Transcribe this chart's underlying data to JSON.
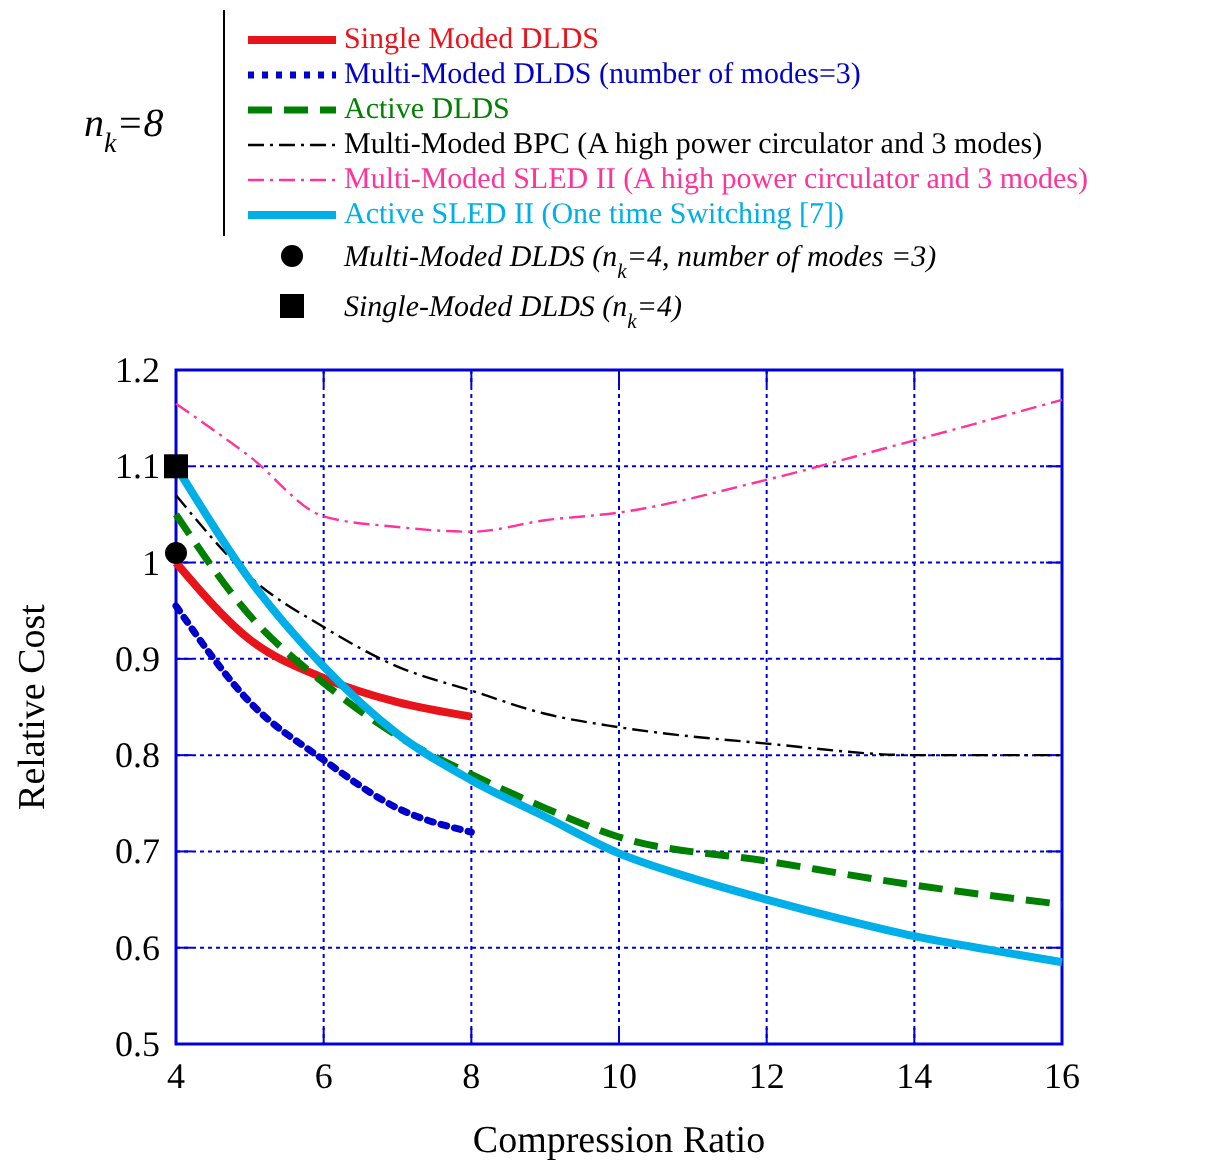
{
  "chart_data": {
    "type": "line",
    "xlabel": "Compression Ratio",
    "ylabel": "Relative Cost",
    "xlim": [
      4,
      16
    ],
    "ylim": [
      0.5,
      1.2
    ],
    "xticks": [
      4,
      6,
      8,
      10,
      12,
      14,
      16
    ],
    "yticks": [
      0.5,
      0.6,
      0.7,
      0.8,
      0.9,
      1,
      1.1,
      1.2
    ],
    "grid": true,
    "legend": "top",
    "annotations": [
      "n$_{k}$=8"
    ],
    "series": [
      {
        "name": "Single Moded DLDS",
        "color": "#e8141c",
        "line_style": "solid",
        "x": [
          4,
          5,
          6,
          7,
          8
        ],
        "values": [
          1.0,
          0.92,
          0.88,
          0.855,
          0.84
        ]
      },
      {
        "name": "Multi-Moded DLDS (number of modes=3)",
        "color": "#0000cc",
        "line_style": "dotted",
        "x": [
          4,
          5,
          6,
          7,
          8
        ],
        "values": [
          0.955,
          0.855,
          0.795,
          0.745,
          0.72
        ]
      },
      {
        "name": "Active DLDS",
        "color": "#008000",
        "line_style": "dashed",
        "x": [
          4,
          5,
          6,
          7,
          8,
          9,
          10,
          12,
          14,
          16
        ],
        "values": [
          1.05,
          0.945,
          0.875,
          0.82,
          0.78,
          0.745,
          0.715,
          0.69,
          0.665,
          0.645
        ]
      },
      {
        "name": "Multi-Moded BPC (A high power circulator and 3 modes)",
        "color": "#000000",
        "line_style": "dashed",
        "x": [
          4,
          5,
          6,
          7,
          8,
          9,
          10,
          12,
          14,
          16
        ],
        "values": [
          1.07,
          0.985,
          0.933,
          0.892,
          0.867,
          0.843,
          0.829,
          0.812,
          0.8,
          0.8
        ]
      },
      {
        "name": "Multi-Moded SLED II (A high power circulator and 3 modes)",
        "color": "#ff3399",
        "line_style": "dashed",
        "x": [
          4,
          5,
          6,
          7,
          8,
          9,
          10,
          12,
          14,
          16
        ],
        "values": [
          1.165,
          1.11,
          1.048,
          1.037,
          1.032,
          1.044,
          1.052,
          1.086,
          1.127,
          1.169
        ]
      },
      {
        "name": "Active SLED II (One time Switching [7])",
        "color": "#00aee8",
        "line_style": "solid",
        "x": [
          4,
          5,
          6,
          7,
          8,
          9,
          10,
          11,
          12,
          13,
          14,
          15,
          16
        ],
        "values": [
          1.1,
          0.982,
          0.892,
          0.822,
          0.774,
          0.736,
          0.698,
          0.672,
          0.65,
          0.63,
          0.612,
          0.598,
          0.585
        ]
      },
      {
        "type": "scatter",
        "marker": "circle",
        "name": "Multi-Moded DLDS (n$_{k}$=4, number of modes =3)",
        "color": "#000000",
        "x": [
          4
        ],
        "values": [
          1.01
        ]
      },
      {
        "type": "scatter",
        "marker": "square",
        "name": "Single-Moded DLDS (n$_{k}$=4)",
        "color": "#000000",
        "x": [
          4
        ],
        "values": [
          1.1
        ]
      }
    ]
  }
}
